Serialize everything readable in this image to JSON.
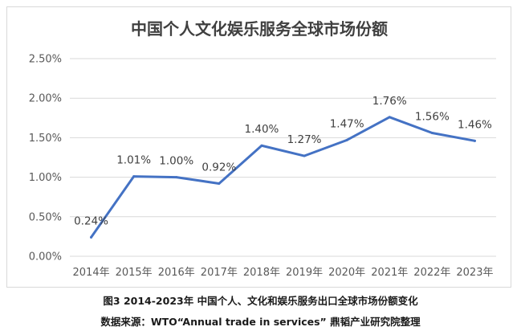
{
  "chart_data": {
    "type": "line",
    "title": "中国个人文化娱乐服务全球市场份额",
    "categories": [
      "2014年",
      "2015年",
      "2016年",
      "2017年",
      "2018年",
      "2019年",
      "2020年",
      "2021年",
      "2022年",
      "2023年"
    ],
    "values": [
      0.24,
      1.01,
      1.0,
      0.92,
      1.4,
      1.27,
      1.47,
      1.76,
      1.56,
      1.46
    ],
    "data_labels": [
      "0.24%",
      "1.01%",
      "1.00%",
      "0.92%",
      "1.40%",
      "1.27%",
      "1.47%",
      "1.76%",
      "1.56%",
      "1.46%"
    ],
    "y_ticks": [
      0,
      0.5,
      1.0,
      1.5,
      2.0,
      2.5
    ],
    "y_tick_labels": [
      "0.00%",
      "0.50%",
      "1.00%",
      "1.50%",
      "2.00%",
      "2.50%"
    ],
    "ylim": [
      0,
      2.5
    ],
    "xlabel": "",
    "ylabel": "",
    "grid": true,
    "legend": "none",
    "line_color": "#4472c4",
    "grid_color": "#d9d9d9"
  },
  "captions": {
    "figure": "图3 2014-2023年 中国个人、文化和娱乐服务出口全球市场份额变化",
    "source": "数据来源：WTO“Annual trade in services” 鼎韬产业研究院整理"
  }
}
